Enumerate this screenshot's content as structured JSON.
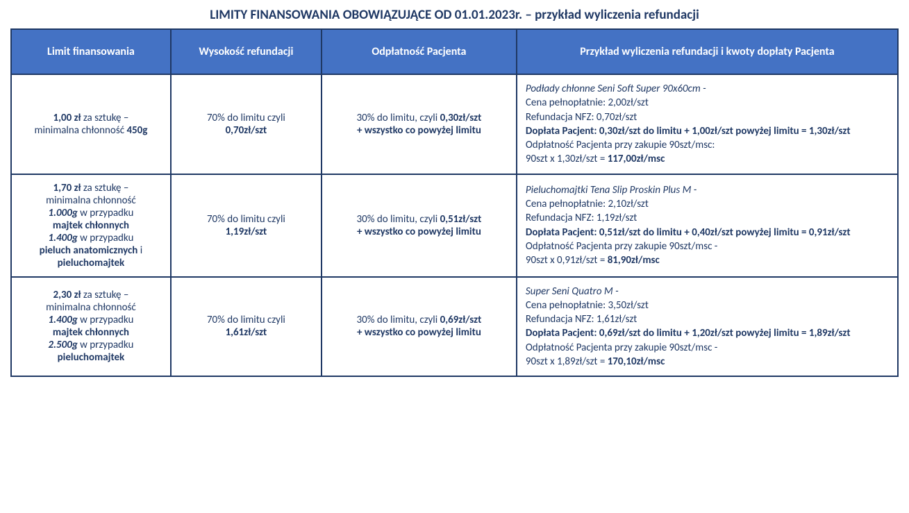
{
  "title": "LIMITY FINANSOWANIA OBOWIĄZUJĄCE OD 01.01.2023r. – przykład wyliczenia refundacji",
  "headers": {
    "h1": "Limit finansowania",
    "h2": "Wysokość refundacji",
    "h3": "Odpłatność Pacjenta",
    "h4": "Przykład wyliczenia refundacji i kwoty dopłaty Pacjenta"
  },
  "colors": {
    "header_bg": "#4472c4",
    "border": "#1f3864",
    "text": "#1f3864"
  },
  "r1": {
    "limit_price": "1,00 zł",
    "limit_txt1": " za sztukę –",
    "limit_txt2": "minimalna chłonność ",
    "limit_abs": "450g",
    "refund_txt": "70% do limitu czyli",
    "refund_val": "0,70zł/szt",
    "pay_txt1": "30% do limitu, czyli ",
    "pay_val": "0,30zł/szt",
    "pay_txt2": "+ wszystko co powyżej limitu",
    "ex_product": "Podłady chłonne Seni Soft Super 90x60cm -",
    "ex_price": "Cena pełnopłatnie: 2,00zł/szt",
    "ex_nfz": "Refundacja NFZ: 0,70zł/szt",
    "ex_doplata": "Dopłata Pacjent: 0,30zł/szt do limitu + 1,00zł/szt powyżej limitu = 1,30zł/szt",
    "ex_odp_txt": "Odpłatność Pacjenta przy zakupie 90szt/msc:",
    "ex_calc_pre": "90szt x 1,30zł/szt = ",
    "ex_calc_val": "117,00zł/msc"
  },
  "r2": {
    "limit_price": "1,70 zł",
    "limit_txt1": " za sztukę –",
    "limit_txt2": "minimalna chłonność",
    "limit_abs1": "1.000g",
    "limit_case1_txt": " w przypadku",
    "limit_case1_prod": "majtek chłonnych",
    "limit_abs2": "1.400g",
    "limit_case2_txt": " w przypadku",
    "limit_case2_prod1": "pieluch anatomicznych",
    "limit_and": " i",
    "limit_case2_prod2": "pieluchomajtek",
    "refund_txt": "70% do limitu czyli",
    "refund_val": "1,19zł/szt",
    "pay_txt1": "30% do limitu, czyli ",
    "pay_val": "0,51zł/szt",
    "pay_txt2": "+ wszystko co powyżej limitu",
    "ex_product": "Pieluchomajtki Tena Slip Proskin Plus M -",
    "ex_price": "Cena pełnopłatnie: 2,10zł/szt",
    "ex_nfz": "Refundacja NFZ: 1,19zł/szt",
    "ex_doplata": "Dopłata Pacjent: 0,51zł/szt do limitu + 0,40zł/szt powyżej limitu = 0,91zł/szt",
    "ex_odp_txt": "Odpłatność Pacjenta przy zakupie 90szt/msc -",
    "ex_calc_pre": "90szt x 0,91zł/szt = ",
    "ex_calc_val": "81,90zł/msc"
  },
  "r3": {
    "limit_price": "2,30 zł",
    "limit_txt1": " za sztukę –",
    "limit_txt2": "minimalna chłonność",
    "limit_abs1": "1.400g",
    "limit_case1_txt": " w przypadku",
    "limit_case1_prod": "majtek chłonnych",
    "limit_abs2": "2.500g",
    "limit_case2_txt": " w przypadku",
    "limit_case2_prod": "pieluchomajtek",
    "refund_txt": "70% do limitu czyli",
    "refund_val": "1,61zł/szt",
    "pay_txt1": "30% do limitu, czyli ",
    "pay_val": "0,69zł/szt",
    "pay_txt2": "+ wszystko co powyżej limitu",
    "ex_product": "Super Seni Quatro M -",
    "ex_price": "Cena pełnopłatnie: 3,50zł/szt",
    "ex_nfz": "Refundacja NFZ: 1,61zł/szt",
    "ex_doplata": "Dopłata Pacjent: 0,69zł/szt do limitu + 1,20zł/szt powyżej limitu = 1,89zł/szt",
    "ex_odp_txt": "Odpłatność Pacjenta przy zakupie 90szt/msc -",
    "ex_calc_pre": "90szt x 1,89zł/szt = ",
    "ex_calc_val": "170,10zł/msc"
  }
}
